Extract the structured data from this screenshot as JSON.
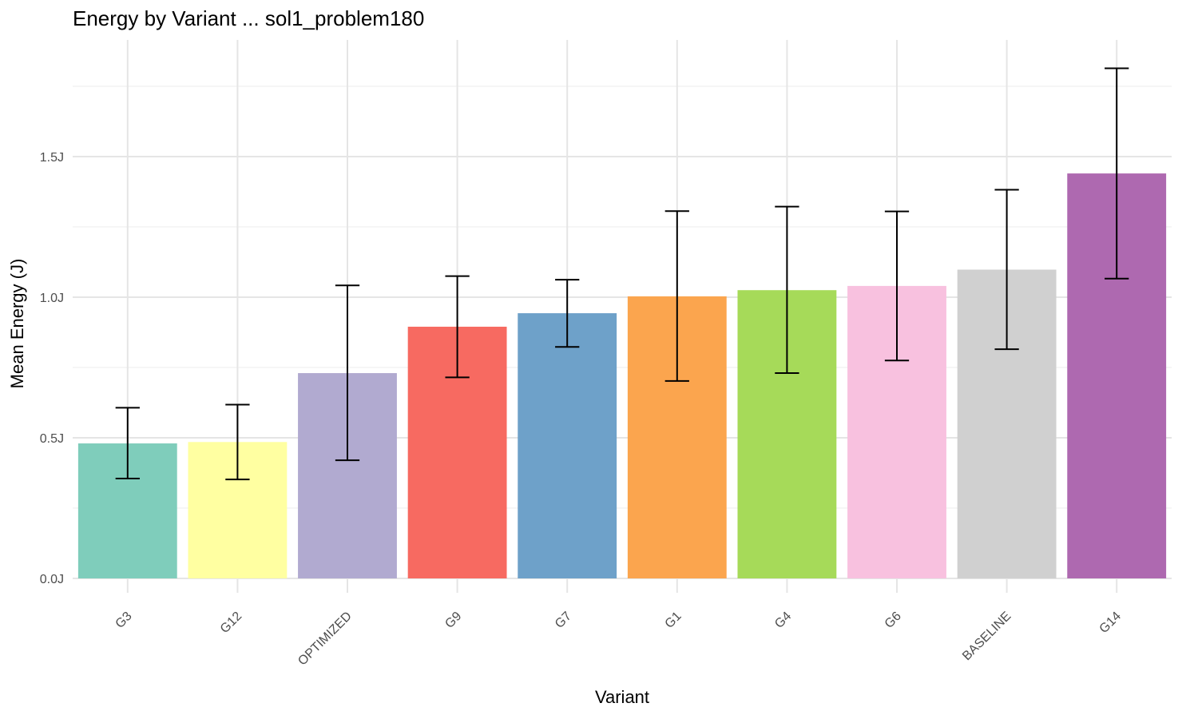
{
  "chart_data": {
    "type": "bar",
    "title": "Energy by Variant ... sol1_problem180",
    "xlabel": "Variant",
    "ylabel": "Mean Energy (J)",
    "categories": [
      "G3",
      "G12",
      "OPTIMIZED",
      "G9",
      "G7",
      "G1",
      "G4",
      "G6",
      "BASELINE",
      "G14"
    ],
    "values": [
      0.48,
      0.485,
      0.73,
      0.895,
      0.943,
      1.003,
      1.025,
      1.04,
      1.098,
      1.44
    ],
    "error_low": [
      0.355,
      0.352,
      0.42,
      0.715,
      0.823,
      0.702,
      0.73,
      0.775,
      0.815,
      1.066
    ],
    "error_high": [
      0.607,
      0.618,
      1.042,
      1.075,
      1.062,
      1.306,
      1.322,
      1.305,
      1.382,
      1.814
    ],
    "colors": [
      "#7fcdbb",
      "#ffffa1",
      "#b1aad0",
      "#f76a61",
      "#6ea1c9",
      "#fba54e",
      "#a6da59",
      "#f8c1df",
      "#d0d0d0",
      "#ae69b0"
    ],
    "ylim": [
      0,
      1.9
    ],
    "yticks": [
      0.0,
      0.5,
      1.0,
      1.5
    ],
    "ytick_labels": [
      "0.0J",
      "0.5J",
      "1.0J",
      "1.5J"
    ],
    "grid": true,
    "legend": "none"
  }
}
